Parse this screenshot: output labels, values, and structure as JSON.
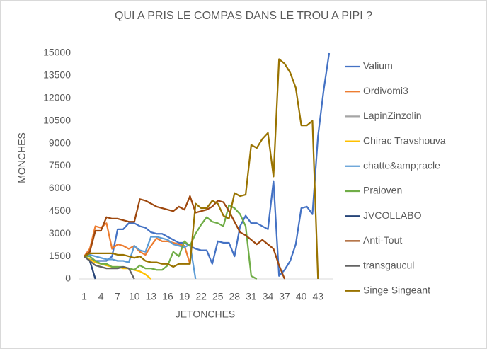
{
  "chart_data": {
    "type": "line",
    "title": "QUI A PRIS LE COMPAS DANS LE TROU A PIPI ?",
    "x_label": "JETONCHES",
    "y_label": "MONCHES",
    "x": [
      1,
      2,
      3,
      4,
      5,
      6,
      7,
      8,
      9,
      10,
      11,
      12,
      13,
      14,
      15,
      16,
      17,
      18,
      19,
      20,
      21,
      22,
      23,
      24,
      25,
      26,
      27,
      28,
      29,
      30,
      31,
      32,
      33,
      34,
      35,
      36,
      37,
      38,
      39,
      40,
      41,
      42,
      43,
      44,
      45
    ],
    "xlim": [
      1,
      45
    ],
    "xticks": [
      1,
      4,
      7,
      10,
      13,
      16,
      19,
      22,
      25,
      28,
      31,
      34,
      37,
      40,
      43
    ],
    "ylim": [
      0,
      15000
    ],
    "yticks": [
      0,
      1500,
      3000,
      4500,
      6000,
      7500,
      9000,
      10500,
      12000,
      13500,
      15000
    ],
    "grid": false,
    "legend": "right",
    "series": [
      {
        "name": "Valium",
        "color": "#4472c4",
        "values": [
          1500,
          1300,
          1200,
          1200,
          1200,
          1500,
          3300,
          3300,
          3700,
          3700,
          3500,
          3400,
          3100,
          3000,
          3000,
          2800,
          2600,
          2400,
          2400,
          2200,
          2000,
          1900,
          1900,
          1000,
          2500,
          2400,
          2400,
          1500,
          3500,
          4200,
          3700,
          3700,
          3500,
          3300,
          6500,
          200,
          600,
          1200,
          2300,
          4700,
          4800,
          4300,
          9500,
          12500,
          15000
        ]
      },
      {
        "name": "Ordivomi3",
        "color": "#ed7d31",
        "values": [
          1500,
          2000,
          3500,
          3400,
          3700,
          2000,
          2300,
          2200,
          2000,
          2200,
          1800,
          1600,
          2200,
          2700,
          2500,
          2500,
          2400,
          2300,
          2200,
          1000,
          null,
          null,
          null,
          null,
          null,
          null,
          null,
          null,
          null,
          null,
          null,
          null,
          null,
          null,
          null,
          null,
          null,
          null,
          null,
          null,
          null,
          null,
          null,
          null,
          null
        ]
      },
      {
        "name": "LapinZinzolin",
        "color": "#a5a5a5",
        "values": [
          1500,
          1200,
          0,
          null,
          null,
          null,
          null,
          null,
          null,
          null,
          null,
          null,
          null,
          null,
          null,
          null,
          null,
          null,
          null,
          null,
          null,
          null,
          null,
          null,
          null,
          null,
          null,
          null,
          null,
          null,
          null,
          null,
          null,
          null,
          null,
          null,
          null,
          null,
          null,
          null,
          null,
          null,
          null,
          null,
          null
        ]
      },
      {
        "name": "Chirac Travshouva",
        "color": "#ffc000",
        "values": [
          1500,
          1300,
          1100,
          1000,
          900,
          800,
          800,
          700,
          700,
          600,
          500,
          300,
          0,
          null,
          null,
          null,
          null,
          null,
          null,
          null,
          null,
          null,
          null,
          null,
          null,
          null,
          null,
          null,
          null,
          null,
          null,
          null,
          null,
          null,
          null,
          null,
          null,
          null,
          null,
          null,
          null,
          null,
          null,
          null,
          null
        ]
      },
      {
        "name": "chatte&amp;racle",
        "color": "#5b9bd5",
        "values": [
          1500,
          1600,
          1500,
          1400,
          1300,
          1300,
          1200,
          1200,
          1100,
          2200,
          1900,
          1800,
          2800,
          2800,
          2700,
          2600,
          2300,
          2200,
          2100,
          2300,
          0,
          null,
          null,
          null,
          null,
          null,
          null,
          null,
          null,
          null,
          null,
          null,
          null,
          null,
          null,
          null,
          null,
          null,
          null,
          null,
          null,
          null,
          null,
          null,
          null
        ]
      },
      {
        "name": "Praioven",
        "color": "#70ad47",
        "values": [
          1500,
          1500,
          1200,
          1000,
          1000,
          800,
          800,
          800,
          700,
          600,
          900,
          700,
          700,
          600,
          600,
          900,
          1800,
          1500,
          2500,
          2200,
          3000,
          3600,
          4100,
          3800,
          3700,
          3500,
          4900,
          4700,
          4300,
          3500,
          200,
          0,
          null,
          null,
          null,
          null,
          null,
          null,
          null,
          null,
          null,
          null,
          null,
          null,
          null
        ]
      },
      {
        "name": "JVCOLLABO",
        "color": "#264478",
        "values": [
          1500,
          1200,
          0,
          null,
          null,
          null,
          null,
          null,
          null,
          null,
          null,
          null,
          null,
          null,
          null,
          null,
          null,
          null,
          null,
          null,
          null,
          null,
          null,
          null,
          null,
          null,
          null,
          null,
          null,
          null,
          null,
          null,
          null,
          null,
          null,
          null,
          null,
          null,
          null,
          null,
          null,
          null,
          null,
          null,
          null
        ]
      },
      {
        "name": "Anti-Tout",
        "color": "#9e480e",
        "values": [
          1500,
          1800,
          3200,
          3200,
          4100,
          4000,
          4000,
          3900,
          3800,
          3800,
          5300,
          5200,
          5000,
          4800,
          4700,
          4600,
          4500,
          4800,
          4600,
          5500,
          4400,
          4500,
          4600,
          4800,
          5200,
          5100,
          4500,
          3800,
          3100,
          2900,
          2600,
          2300,
          2600,
          2300,
          2000,
          900,
          0,
          null,
          null,
          null,
          null,
          null,
          null,
          null,
          null
        ]
      },
      {
        "name": "transgaucul",
        "color": "#636363",
        "values": [
          1500,
          1200,
          900,
          800,
          700,
          700,
          700,
          800,
          700,
          0,
          null,
          null,
          null,
          null,
          null,
          null,
          null,
          null,
          null,
          null,
          null,
          null,
          null,
          null,
          null,
          null,
          null,
          null,
          null,
          null,
          null,
          null,
          null,
          null,
          null,
          null,
          null,
          null,
          null,
          null,
          null,
          null,
          null,
          null,
          null
        ]
      },
      {
        "name": "Singe Singeant",
        "color": "#997300",
        "values": [
          1500,
          1700,
          1700,
          1700,
          1700,
          1700,
          1600,
          1600,
          1500,
          1400,
          1500,
          1200,
          1100,
          1100,
          1000,
          1000,
          800,
          1000,
          1000,
          1000,
          5000,
          4700,
          4700,
          5200,
          5000,
          4200,
          4000,
          5700,
          5500,
          5600,
          8900,
          8700,
          9300,
          9700,
          6800,
          14600,
          14300,
          13700,
          12700,
          10200,
          10200,
          10500,
          0,
          null,
          null
        ]
      }
    ]
  }
}
